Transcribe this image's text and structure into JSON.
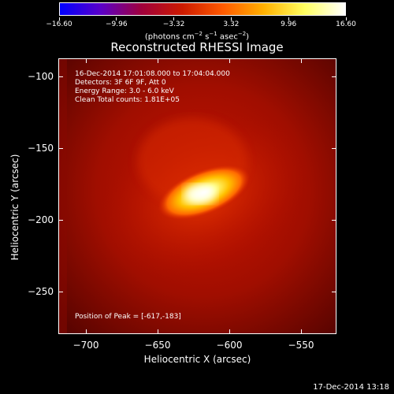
{
  "colorbar": {
    "tick_labels": [
      "−16.60",
      "−9.96",
      "−3.32",
      "3.32",
      "9.96",
      "16.60"
    ],
    "units_prefix": "(photons cm",
    "units_sup1": "−2",
    "units_mid1": " s",
    "units_sup2": "−1",
    "units_mid2": " asec",
    "units_sup3": "−2",
    "units_suffix": ")",
    "colors": [
      "#0000ff",
      "#5a00c8",
      "#a0003c",
      "#cc1a00",
      "#ff5a00",
      "#ffb000",
      "#ffff60",
      "#ffffff"
    ]
  },
  "title": "Reconstructed RHESSI Image",
  "annotations": {
    "time_range": "16-Dec-2014 17:01:08.000 to 17:04:04.000",
    "detectors": "Detectors: 3F 6F 9F, Att 0",
    "energy": "Energy Range: 3.0 - 6.0 keV",
    "method": "Clean    Total counts: 1.81E+05",
    "peak": "Position of Peak = [-617,-183]"
  },
  "axes": {
    "ylabel": "Heliocentric Y (arcsec)",
    "xlabel": "Heliocentric X (arcsec)",
    "yticks": [
      "−100",
      "−150",
      "−200",
      "−250"
    ],
    "xticks": [
      "−700",
      "−650",
      "−600",
      "−550"
    ]
  },
  "timestamp": "17-Dec-2014 13:18"
}
